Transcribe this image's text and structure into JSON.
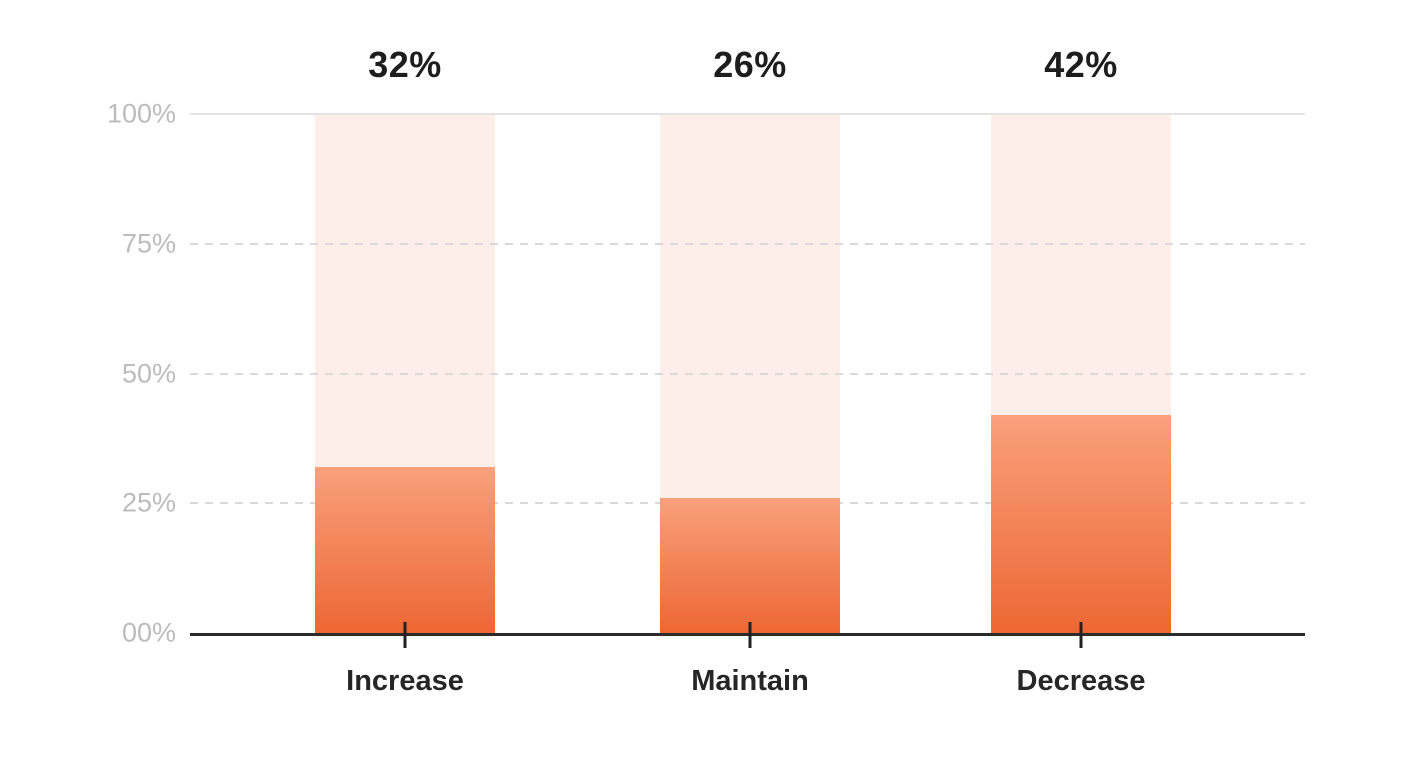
{
  "chart_data": {
    "type": "bar",
    "title": "",
    "categories": [
      "Increase",
      "Maintain",
      "Decrease"
    ],
    "values": [
      32,
      26,
      42
    ],
    "value_labels": [
      "32%",
      "26%",
      "42%"
    ],
    "xlabel": "",
    "ylabel": "",
    "ylim": [
      0,
      100
    ],
    "y_tick_labels": [
      "100%",
      "75%",
      "50%",
      "25%",
      "00%"
    ],
    "y_tick_values": [
      100,
      75,
      50,
      25,
      0
    ],
    "grid": "horizontal; solid line at 100%, dashed lines at 75%, 50%, 25%; solid dark baseline at 0%",
    "legend": "none",
    "colors": {
      "bar_fill_gradient_top": "#f9a07d",
      "bar_fill_gradient_bottom": "#ed6733",
      "bar_background_track": "#fdeeea",
      "gridline_solid": "#e3e3e3",
      "gridline_dashed": "#d9d9d9",
      "axis_line": "#2b2b2b",
      "tick_mark": "#222222",
      "value_label_text": "#1d1d1d",
      "category_label_text": "#262626",
      "y_axis_label_text": "#bcbcbc",
      "page_background": "#ffffff"
    }
  }
}
